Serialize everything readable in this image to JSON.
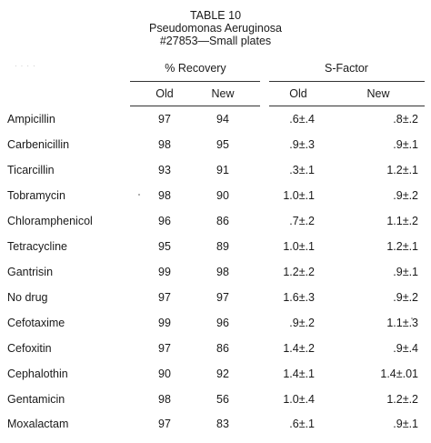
{
  "caption": {
    "line1": "TABLE 10",
    "line2": "Pseudomonas Aeruginosa",
    "line3": "#27853—Small plates"
  },
  "headers": {
    "recovery": "% Recovery",
    "sfactor": "S-Factor",
    "recovery_old": "Old",
    "recovery_new": "New",
    "sfactor_old": "Old",
    "sfactor_new": "New"
  },
  "rows": [
    {
      "name": "Ampicillin",
      "rec_old": "97",
      "rec_new": "94",
      "sf_old": ".6±.4",
      "sf_new": ".8±.2"
    },
    {
      "name": "Carbenicillin",
      "rec_old": "98",
      "rec_new": "95",
      "sf_old": ".9±.3",
      "sf_new": ".9±.1"
    },
    {
      "name": "Ticarcillin",
      "rec_old": "93",
      "rec_new": "91",
      "sf_old": ".3±.1",
      "sf_new": "1.2±.1"
    },
    {
      "name": "Tobramycin",
      "rec_old": "98",
      "rec_new": "90",
      "sf_old": "1.0±.1",
      "sf_new": ".9±.2"
    },
    {
      "name": "Chloramphenicol",
      "rec_old": "96",
      "rec_new": "86",
      "sf_old": ".7±.2",
      "sf_new": "1.1±.2"
    },
    {
      "name": "Tetracycline",
      "rec_old": "95",
      "rec_new": "89",
      "sf_old": "1.0±.1",
      "sf_new": "1.2±.1"
    },
    {
      "name": "Gantrisin",
      "rec_old": "99",
      "rec_new": "98",
      "sf_old": "1.2±.2",
      "sf_new": ".9±.1"
    },
    {
      "name": "No drug",
      "rec_old": "97",
      "rec_new": "97",
      "sf_old": "1.6±.3",
      "sf_new": ".9±.2"
    },
    {
      "name": "Cefotaxime",
      "rec_old": "99",
      "rec_new": "96",
      "sf_old": ".9±.2",
      "sf_new": "1.1±.3"
    },
    {
      "name": "Cefoxitin",
      "rec_old": "97",
      "rec_new": "86",
      "sf_old": "1.4±.2",
      "sf_new": ".9±.4"
    },
    {
      "name": "Cephalothin",
      "rec_old": "90",
      "rec_new": "92",
      "sf_old": "1.4±.1",
      "sf_new": "1.4±.01"
    },
    {
      "name": "Gentamicin",
      "rec_old": "98",
      "rec_new": "56",
      "sf_old": "1.0±.4",
      "sf_new": "1.2±.2"
    },
    {
      "name": "Moxalactam",
      "rec_old": "97",
      "rec_new": "83",
      "sf_old": ".6±.1",
      "sf_new": ".9±.1"
    }
  ]
}
